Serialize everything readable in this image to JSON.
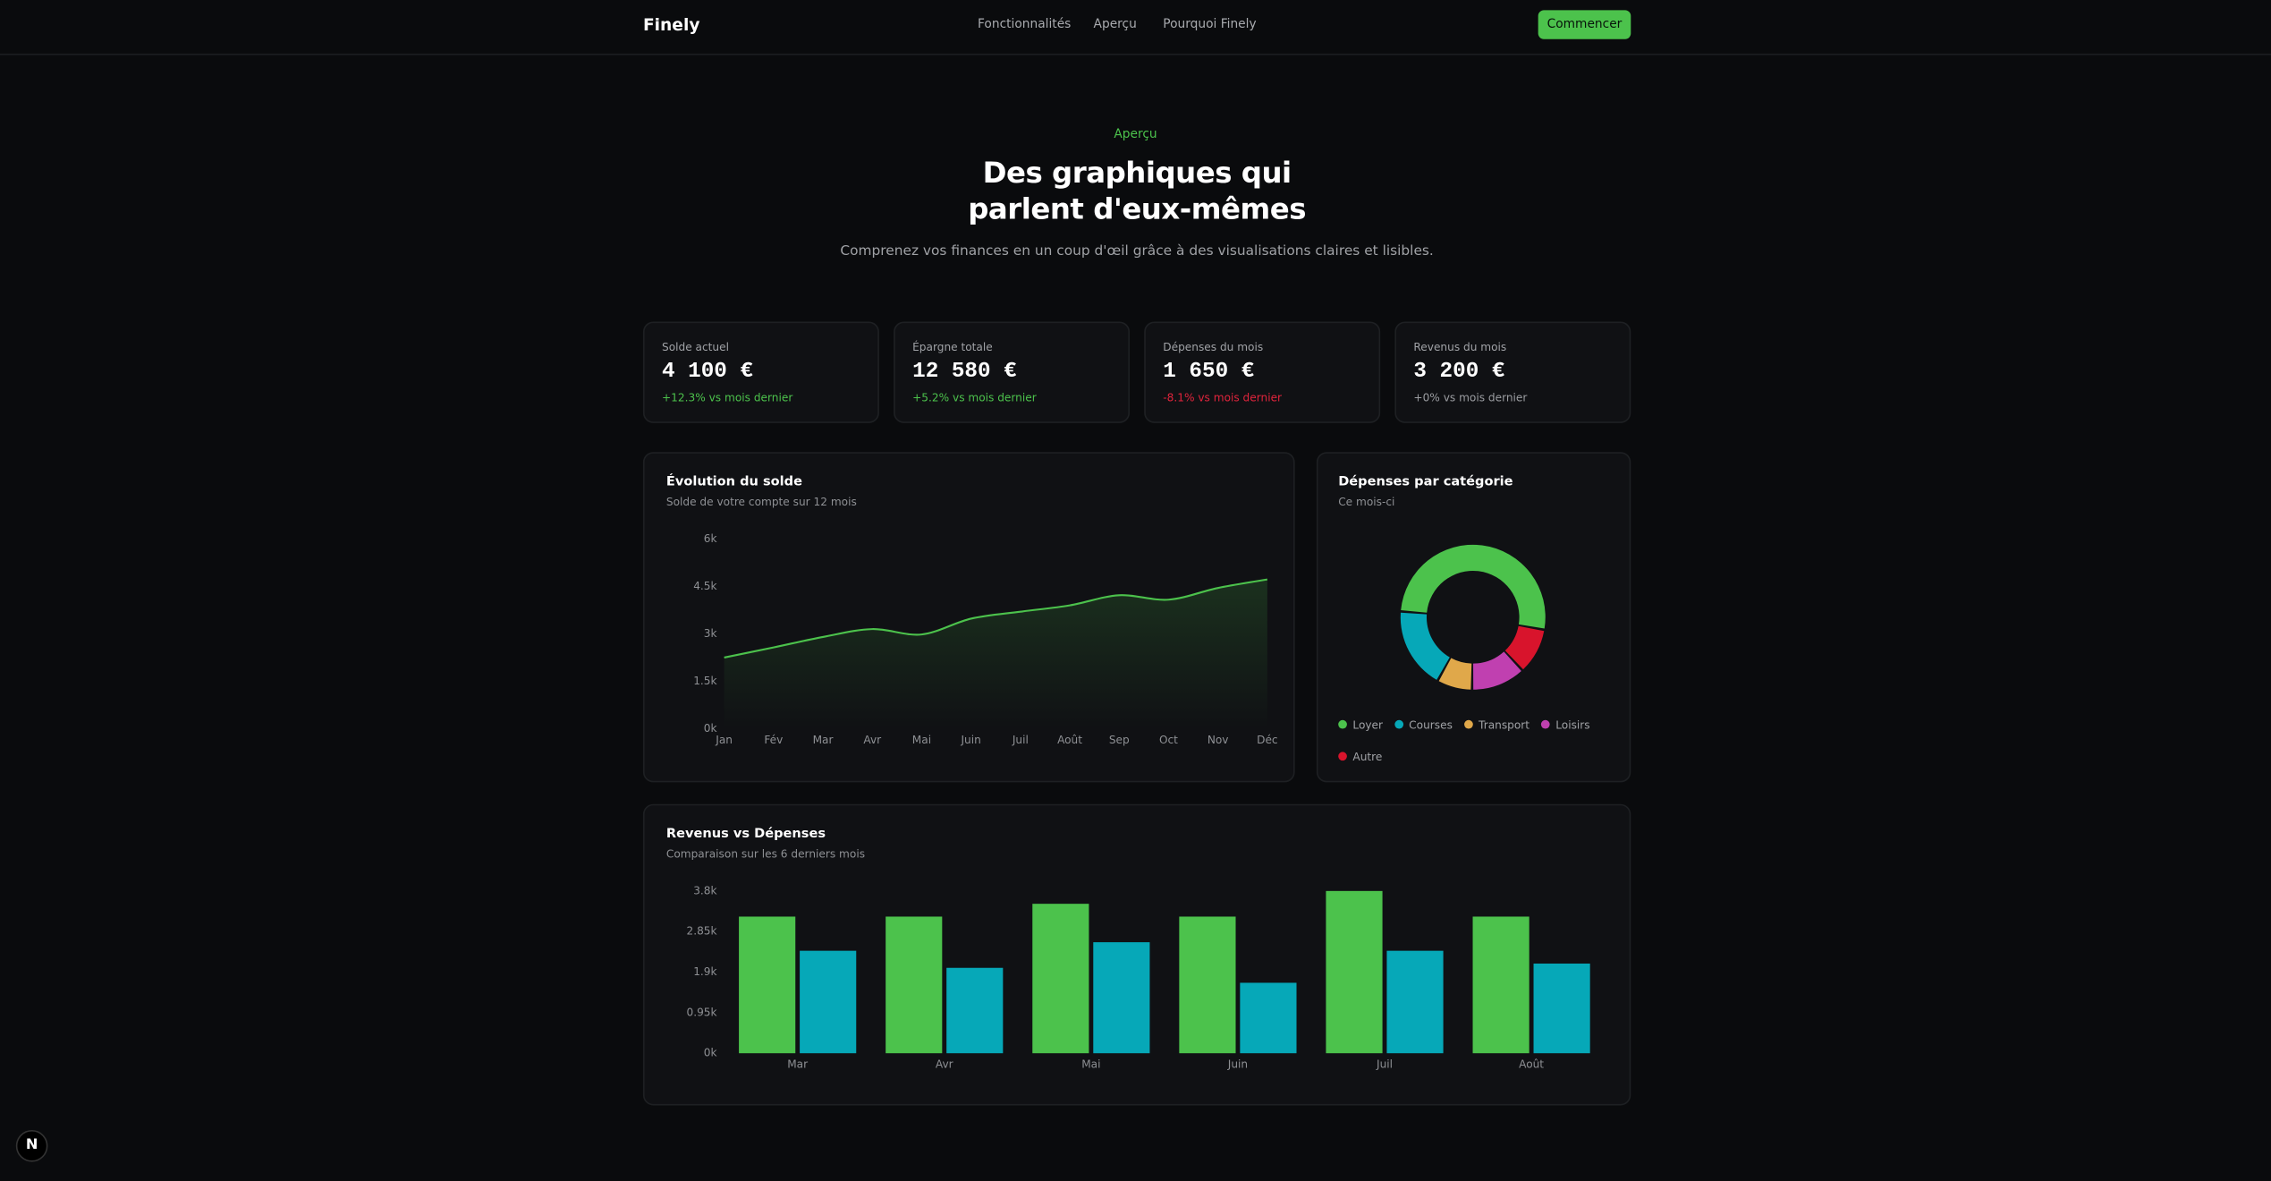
{
  "nav": {
    "brand": "Finely",
    "links": [
      "Fonctionnalités",
      "Aperçu",
      "Pourquoi Finely"
    ],
    "button": "Commencer"
  },
  "hero": {
    "eyebrow": "Aperçu",
    "title_lines": [
      "Des graphiques qui",
      "parlent d'eux-mêmes"
    ],
    "subtitle": "Comprenez vos finances en un coup d'œil grâce à des visualisations claires et lisibles."
  },
  "stats": [
    {
      "label": "Solde actuel",
      "value": "4 100 €",
      "change": "+12.3% vs mois dernier",
      "color": "#4cc24c"
    },
    {
      "label": "Épargne totale",
      "value": "12 580 €",
      "change": "+5.2% vs mois dernier",
      "color": "#4cc24c"
    },
    {
      "label": "Dépenses du mois",
      "value": "1 650 €",
      "change": "-8.1% vs mois dernier",
      "color": "#e0243c"
    },
    {
      "label": "Revenus du mois",
      "value": "3 200 €",
      "change": "+0% vs mois dernier",
      "color": "#9a9ca0"
    }
  ],
  "chart_data": [
    {
      "type": "line",
      "title": "Évolution du solde",
      "subtitle": "Solde de votre compte sur 12 mois",
      "categories": [
        "Jan",
        "Fév",
        "Mar",
        "Avr",
        "Mai",
        "Juin",
        "Juil",
        "Août",
        "Sep",
        "Oct",
        "Nov",
        "Déc"
      ],
      "values": [
        2250,
        2570,
        2900,
        3150,
        2980,
        3480,
        3700,
        3900,
        4220,
        4080,
        4450,
        4720
      ],
      "color": "#4cc24c",
      "ylim": [
        0,
        6000
      ],
      "yticks": [
        {
          "value": 0,
          "label": "0k"
        },
        {
          "value": 1500,
          "label": "1.5k"
        },
        {
          "value": 3000,
          "label": "3k"
        },
        {
          "value": 4500,
          "label": "4.5k"
        },
        {
          "value": 6000,
          "label": "6k"
        }
      ]
    },
    {
      "type": "pie",
      "title": "Dépenses par catégorie",
      "subtitle": "Ce mois-ci",
      "categories": [
        "Loyer",
        "Courses",
        "Transport",
        "Loisirs",
        "Autre"
      ],
      "values": [
        850,
        300,
        130,
        200,
        170
      ],
      "colors": [
        "#4cc24c",
        "#06a8b8",
        "#e0a84a",
        "#c040b0",
        "#d8142c"
      ]
    },
    {
      "type": "bar",
      "title": "Revenus vs Dépenses",
      "subtitle": "Comparaison sur les 6 derniers mois",
      "categories": [
        "Mar",
        "Avr",
        "Mai",
        "Juin",
        "Juil",
        "Août"
      ],
      "series": [
        {
          "color": "#4cc24c",
          "values": [
            3200,
            3200,
            3500,
            3200,
            3800,
            3200
          ]
        },
        {
          "color": "#06a8b8",
          "values": [
            2400,
            2000,
            2600,
            1650,
            2400,
            2100
          ]
        }
      ],
      "ylim": [
        0,
        3800
      ],
      "yticks": [
        {
          "value": 0,
          "label": "0k"
        },
        {
          "value": 950,
          "label": "0.95k"
        },
        {
          "value": 1900,
          "label": "1.9k"
        },
        {
          "value": 2850,
          "label": "2.85k"
        },
        {
          "value": 3800,
          "label": "3.8k"
        }
      ]
    }
  ]
}
